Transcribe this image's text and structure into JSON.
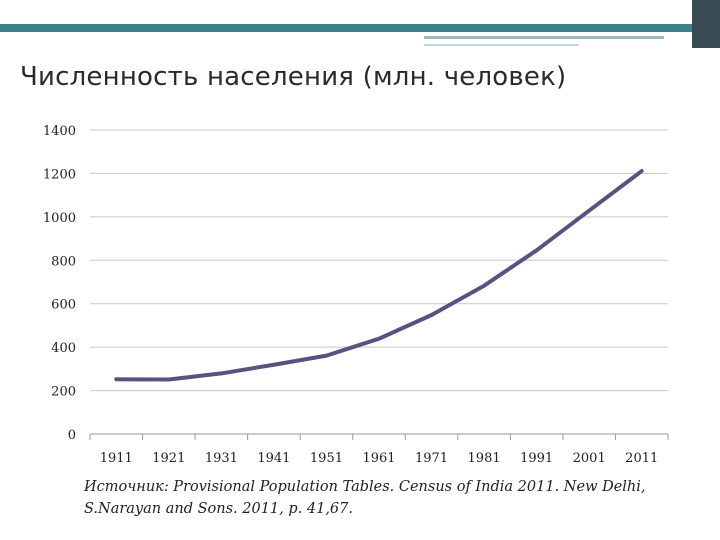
{
  "slide": {
    "title": "Численность населения (млн. человек)",
    "source": "Источник: Provisional Population Tables. Census of India 2011. New Delhi, S.Narayan and Sons. 2011, p. 41,67."
  },
  "colors": {
    "line": "#535482",
    "grid": "#c8c8c8",
    "accent_band": "#3e7f8c"
  },
  "chart_data": {
    "type": "line",
    "categories": [
      "1911",
      "1921",
      "1931",
      "1941",
      "1951",
      "1961",
      "1971",
      "1981",
      "1991",
      "2001",
      "2011"
    ],
    "series": [
      {
        "values": [
          252,
          251,
          279,
          319,
          361,
          439,
          548,
          683,
          846,
          1029,
          1211
        ]
      }
    ],
    "yticks": [
      "0",
      "200",
      "400",
      "600",
      "800",
      "1000",
      "1200",
      "1400"
    ],
    "ylim": [
      0,
      1400
    ],
    "grid": true,
    "legend": "none"
  }
}
